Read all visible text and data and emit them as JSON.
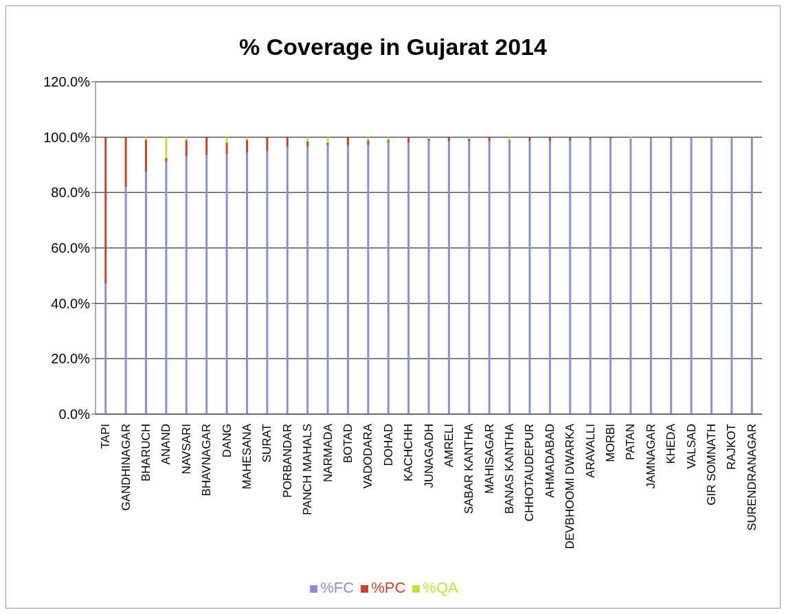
{
  "chart_data": {
    "type": "bar",
    "title": "% Coverage in Gujarat 2014",
    "stacked": true,
    "categories": [
      "TAPI",
      "GANDHINAGAR",
      "BHARUCH",
      "ANAND",
      "NAVSARI",
      "BHAVNAGAR",
      "DANG",
      "MAHESANA",
      "SURAT",
      "PORBANDAR",
      "PANCH MAHALS",
      "NARMADA",
      "BOTAD",
      "VADODARA",
      "DOHAD",
      "KACHCHH",
      "JUNAGADH",
      "AMRELI",
      "SABAR KANTHA",
      "MAHISAGAR",
      "BANAS KANTHA",
      "CHHOTAUDEPUR",
      "AHMADABAD",
      "DEVBHOOMI DWARKA",
      "ARAVALLI",
      "MORBI",
      "PATAN",
      "JAMNAGAR",
      "KHEDA",
      "VALSAD",
      "GIR SOMNATH",
      "RAJKOT",
      "SURENDRANAGAR"
    ],
    "series": [
      {
        "name": "%FC",
        "color": "#8c8fd6",
        "values": [
          47,
          82,
          87.5,
          91,
          93,
          93.5,
          94,
          94.5,
          95,
          96.5,
          96.5,
          97,
          97,
          97,
          98,
          98,
          98.5,
          98.5,
          98.5,
          98.5,
          98.5,
          98.5,
          98.5,
          98.5,
          99,
          99.5,
          99.5,
          99.5,
          99.5,
          100,
          100,
          100,
          100
        ]
      },
      {
        "name": "%PC",
        "color": "#c8442a",
        "values": [
          53,
          18,
          11.5,
          1.5,
          6,
          6.5,
          4,
          4.5,
          5,
          3.5,
          2,
          1,
          3,
          2,
          1,
          2,
          1,
          1.5,
          1,
          1.5,
          0.5,
          1.5,
          1.5,
          1.5,
          1,
          0.5,
          0,
          0.5,
          0.5,
          0,
          0,
          0,
          0
        ]
      },
      {
        "name": "%QA",
        "color": "#c6e03a",
        "values": [
          0,
          0,
          1,
          7.5,
          1,
          0,
          2,
          1,
          0,
          0,
          1.5,
          2,
          0,
          1,
          1,
          0,
          0.5,
          0,
          0.5,
          0,
          1,
          0,
          0,
          0,
          0,
          0,
          0.5,
          0,
          0,
          0,
          0,
          0,
          0
        ]
      }
    ],
    "ylim": [
      0,
      120
    ],
    "yticks": [
      {
        "value": 0,
        "label": "0.0%"
      },
      {
        "value": 20,
        "label": "20.0%"
      },
      {
        "value": 40,
        "label": "40.0%"
      },
      {
        "value": 60,
        "label": "60.0%"
      },
      {
        "value": 80,
        "label": "80.0%"
      },
      {
        "value": 100,
        "label": "100.0%"
      },
      {
        "value": 120,
        "label": "120.0%"
      }
    ],
    "grid": "y",
    "legend": "bottom"
  }
}
